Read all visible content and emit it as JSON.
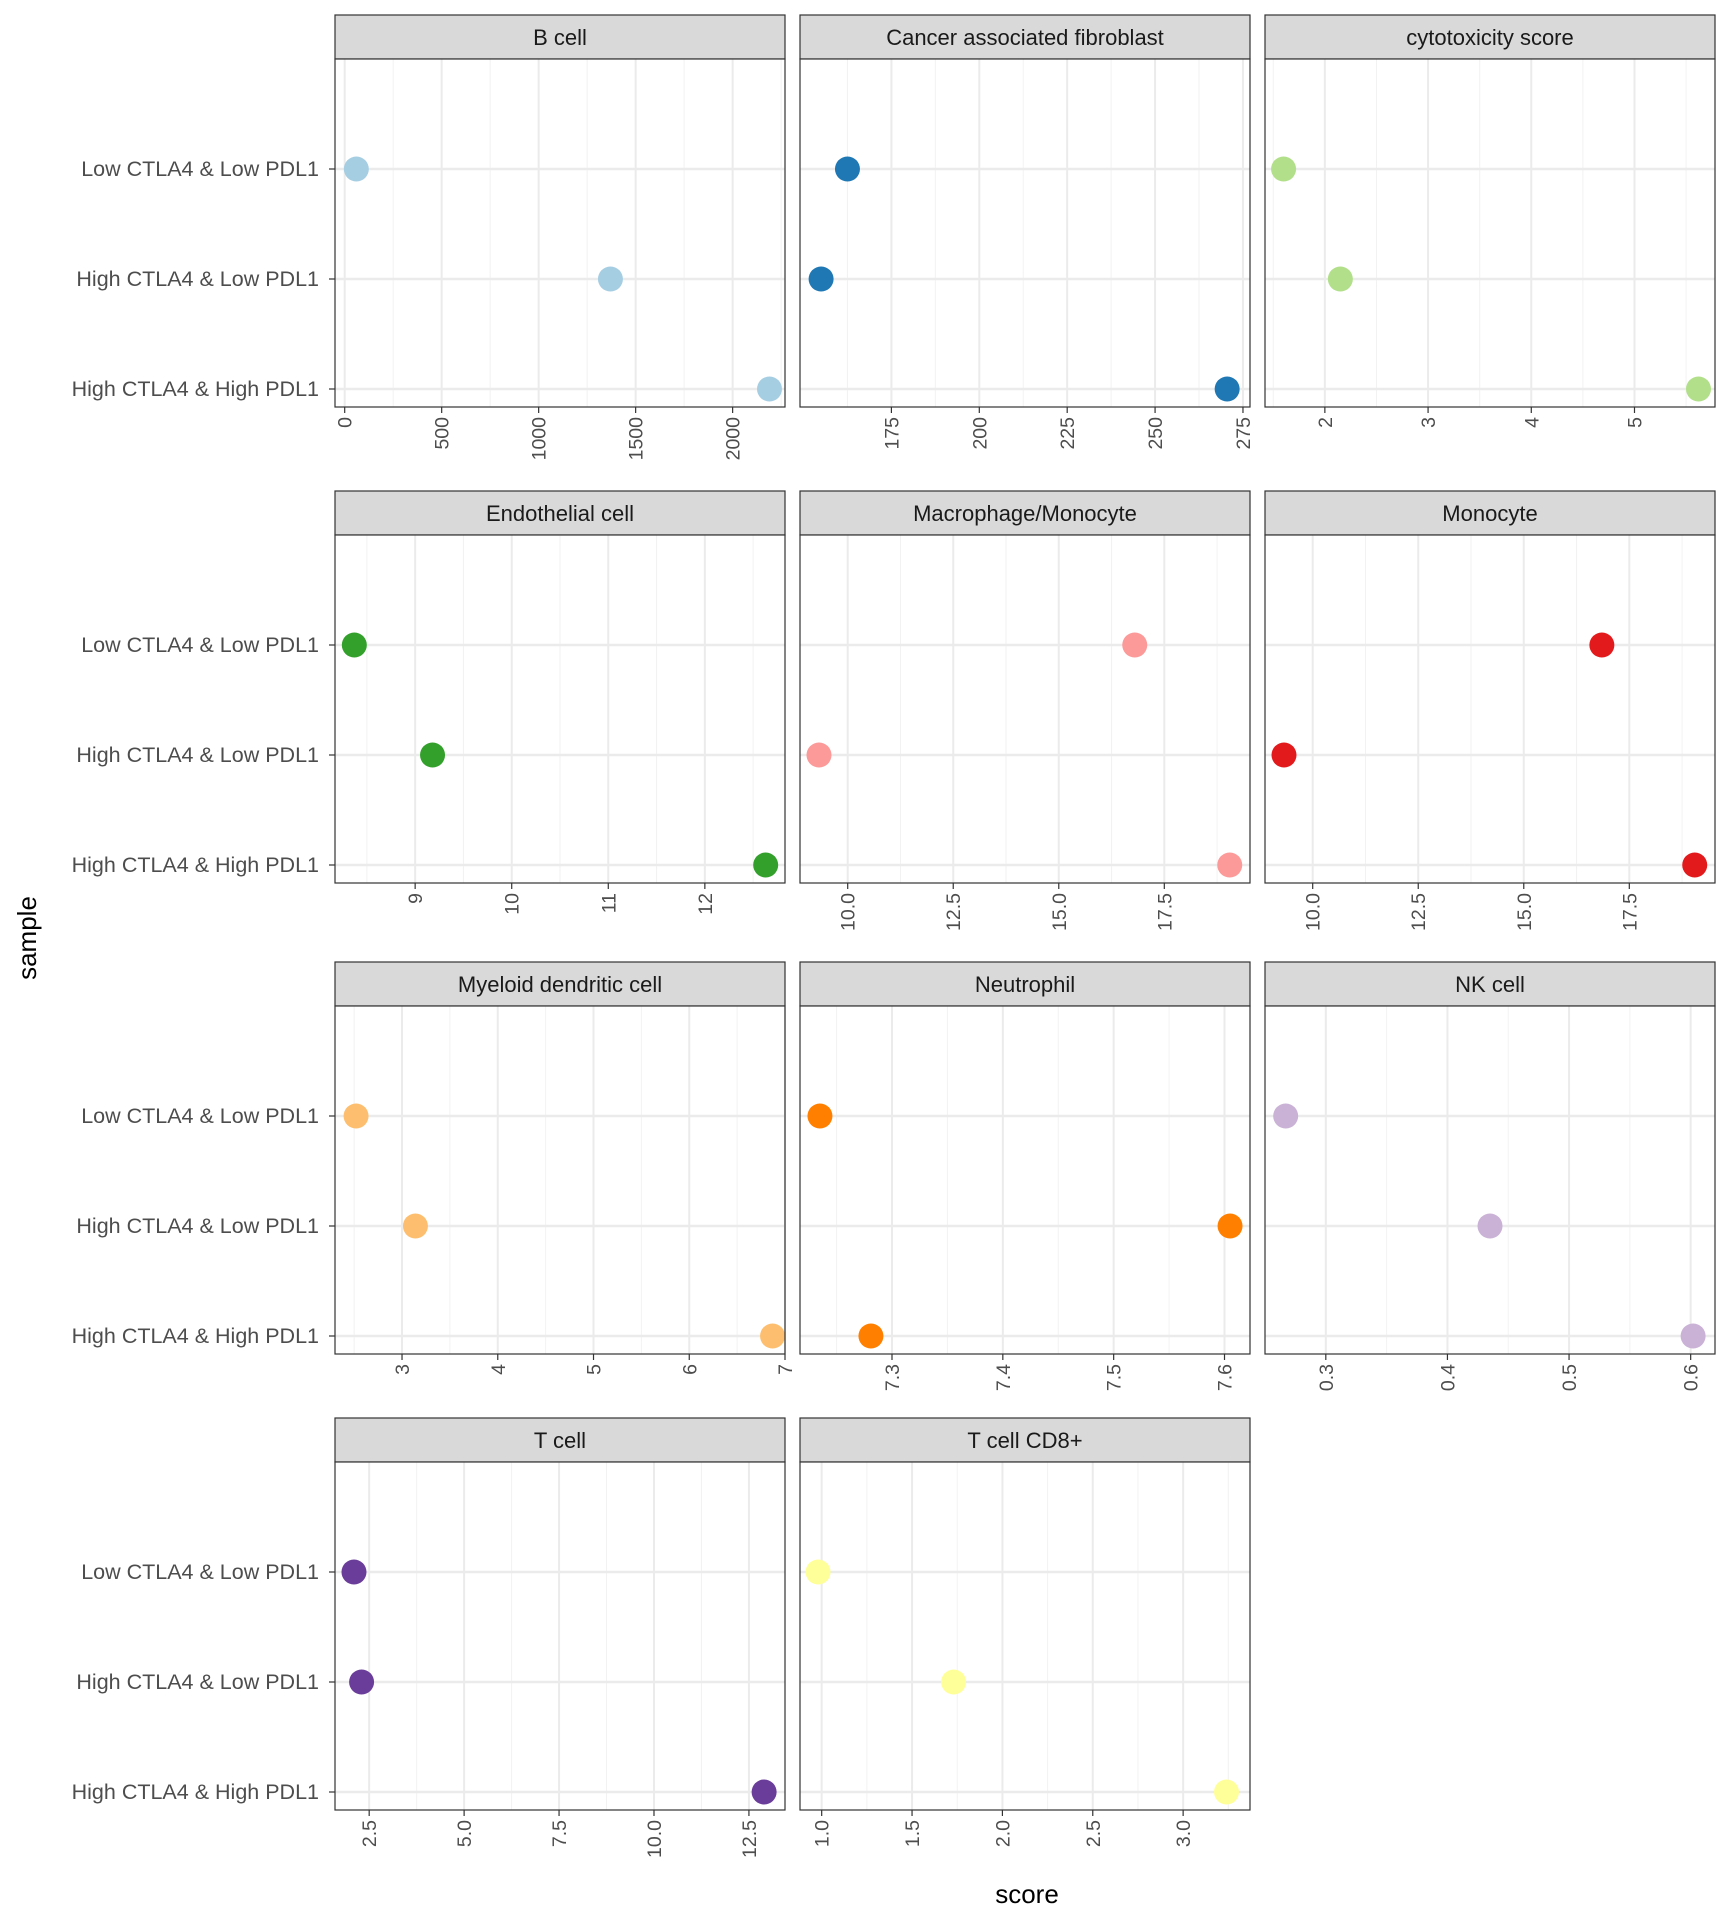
{
  "chart_data": {
    "type": "scatter",
    "xlabel": "score",
    "ylabel": "sample",
    "y_categories": [
      "Low CTLA4 & Low PDL1",
      "High CTLA4 & Low PDL1",
      "High CTLA4 & High PDL1"
    ],
    "grid": true,
    "legend": "none",
    "panels": [
      {
        "title": "B cell",
        "color": "#a6cee3",
        "xlim": [
          -50,
          2270
        ],
        "ticks": [
          0,
          500,
          1000,
          1500,
          2000
        ],
        "tick_labels": [
          "0",
          "500",
          "1000",
          "1500",
          "2000"
        ],
        "values": [
          60,
          1370,
          2190
        ]
      },
      {
        "title": "Cancer associated fibroblast",
        "color": "#1f78b4",
        "xlim": [
          149,
          277
        ],
        "ticks": [
          175,
          200,
          225,
          250,
          275
        ],
        "tick_labels": [
          "175",
          "200",
          "225",
          "250",
          "275"
        ],
        "values": [
          162.5,
          155,
          270.5
        ]
      },
      {
        "title": "cytotoxicity score",
        "color": "#b2df8a",
        "xlim": [
          1.42,
          5.78
        ],
        "ticks": [
          2,
          3,
          4,
          5
        ],
        "tick_labels": [
          "2",
          "3",
          "4",
          "5"
        ],
        "values": [
          1.6,
          2.15,
          5.62
        ]
      },
      {
        "title": "Endothelial cell",
        "color": "#33a02c",
        "xlim": [
          8.17,
          12.83
        ],
        "ticks": [
          9,
          10,
          11,
          12
        ],
        "tick_labels": [
          "9",
          "10",
          "11",
          "12"
        ],
        "values": [
          8.37,
          9.18,
          12.63
        ]
      },
      {
        "title": "Macrophage/Monocyte",
        "color": "#fb9a99",
        "xlim": [
          8.87,
          19.53
        ],
        "ticks": [
          10,
          12.5,
          15,
          17.5
        ],
        "tick_labels": [
          "10.0",
          "12.5",
          "15.0",
          "17.5"
        ],
        "values": [
          16.8,
          9.32,
          19.05
        ]
      },
      {
        "title": "Monocyte",
        "color": "#e31a1c",
        "xlim": [
          8.87,
          19.53
        ],
        "ticks": [
          10,
          12.5,
          15,
          17.5
        ],
        "tick_labels": [
          "10.0",
          "12.5",
          "15.0",
          "17.5"
        ],
        "values": [
          16.85,
          9.32,
          19.05
        ]
      },
      {
        "title": "Myeloid dendritic cell",
        "color": "#fdbf6f",
        "xlim": [
          2.3,
          7.0
        ],
        "ticks": [
          3,
          4,
          5,
          6,
          7
        ],
        "tick_labels": [
          "3",
          "4",
          "5",
          "6",
          "7"
        ],
        "values": [
          2.52,
          3.14,
          6.87
        ]
      },
      {
        "title": "Neutrophil",
        "color": "#ff7f00",
        "xlim": [
          7.217,
          7.623
        ],
        "ticks": [
          7.3,
          7.4,
          7.5,
          7.6
        ],
        "tick_labels": [
          "7.3",
          "7.4",
          "7.5",
          "7.6"
        ],
        "values": [
          7.235,
          7.605,
          7.281
        ]
      },
      {
        "title": "NK cell",
        "color": "#cab2d6",
        "xlim": [
          0.25,
          0.62
        ],
        "ticks": [
          0.3,
          0.4,
          0.5,
          0.6
        ],
        "tick_labels": [
          "0.3",
          "0.4",
          "0.5",
          "0.6"
        ],
        "values": [
          0.267,
          0.435,
          0.602
        ]
      },
      {
        "title": "T cell",
        "color": "#6a3d9a",
        "xlim": [
          1.6,
          13.45
        ],
        "ticks": [
          2.5,
          5,
          7.5,
          10,
          12.5
        ],
        "tick_labels": [
          "2.5",
          "5.0",
          "7.5",
          "10.0",
          "12.5"
        ],
        "values": [
          2.1,
          2.3,
          12.9
        ]
      },
      {
        "title": "T cell CD8+",
        "color": "#ffff99",
        "xlim": [
          0.88,
          3.37
        ],
        "ticks": [
          1,
          1.5,
          2,
          2.5,
          3
        ],
        "tick_labels": [
          "1.0",
          "1.5",
          "2.0",
          "2.5",
          "3.0"
        ],
        "values": [
          0.98,
          1.73,
          3.24
        ]
      }
    ]
  }
}
